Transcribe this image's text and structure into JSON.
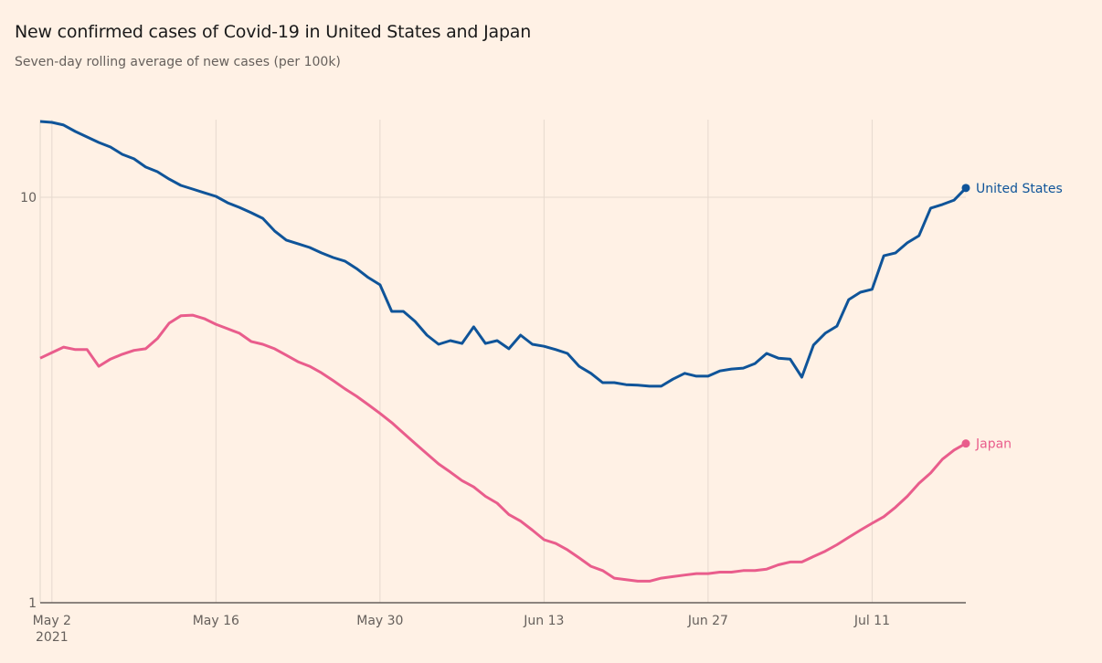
{
  "title": "New confirmed cases of Covid-19 in United States and Japan",
  "subtitle": "Seven-day rolling average of new cases (per 100k)",
  "chart_data": {
    "type": "line",
    "title": "New confirmed cases of Covid-19 in United States and Japan",
    "subtitle": "Seven-day rolling average of new cases (per 100k)",
    "xlabel": "",
    "ylabel": "",
    "yscale": "log",
    "ylim": [
      1,
      15.5
    ],
    "x_start": "2021-05-01",
    "x_end": "2021-07-19",
    "x_ticks": [
      {
        "day": 1,
        "label": "May 2",
        "sublabel": "2021"
      },
      {
        "day": 15,
        "label": "May 16"
      },
      {
        "day": 29,
        "label": "May 30"
      },
      {
        "day": 43,
        "label": "Jun 13"
      },
      {
        "day": 57,
        "label": "Jun 27"
      },
      {
        "day": 71,
        "label": "Jul 11"
      }
    ],
    "y_ticks": [
      {
        "value": 1,
        "label": "1"
      },
      {
        "value": 10,
        "label": "10"
      }
    ],
    "grid": true,
    "legend": "end-of-line labels",
    "series": [
      {
        "name": "United States",
        "color": "#0F5499",
        "values": [
          15.38,
          15.3,
          15.07,
          14.53,
          14.08,
          13.65,
          13.3,
          12.76,
          12.44,
          11.87,
          11.56,
          11.09,
          10.7,
          10.48,
          10.26,
          10.05,
          9.69,
          9.44,
          9.16,
          8.87,
          8.26,
          7.84,
          7.68,
          7.52,
          7.29,
          7.1,
          6.96,
          6.67,
          6.34,
          6.08,
          5.23,
          5.23,
          4.94,
          4.57,
          4.34,
          4.43,
          4.36,
          4.79,
          4.36,
          4.43,
          4.23,
          4.57,
          4.34,
          4.29,
          4.21,
          4.12,
          3.83,
          3.68,
          3.49,
          3.49,
          3.45,
          3.44,
          3.42,
          3.42,
          3.56,
          3.68,
          3.62,
          3.62,
          3.73,
          3.77,
          3.79,
          3.89,
          4.12,
          4.01,
          3.99,
          3.6,
          4.32,
          4.62,
          4.81,
          5.59,
          5.83,
          5.93,
          7.17,
          7.29,
          7.72,
          8.04,
          9.4,
          9.6,
          9.84,
          10.54
        ]
      },
      {
        "name": "Japan",
        "color": "#E95D8C",
        "values": [
          4.01,
          4.14,
          4.27,
          4.21,
          4.21,
          3.83,
          3.99,
          4.1,
          4.19,
          4.23,
          4.48,
          4.89,
          5.1,
          5.12,
          5.02,
          4.86,
          4.74,
          4.62,
          4.41,
          4.34,
          4.23,
          4.08,
          3.93,
          3.83,
          3.69,
          3.53,
          3.37,
          3.23,
          3.08,
          2.93,
          2.78,
          2.62,
          2.47,
          2.33,
          2.2,
          2.1,
          2.0,
          1.93,
          1.83,
          1.76,
          1.65,
          1.59,
          1.51,
          1.43,
          1.4,
          1.35,
          1.29,
          1.23,
          1.2,
          1.15,
          1.14,
          1.13,
          1.13,
          1.15,
          1.16,
          1.17,
          1.18,
          1.18,
          1.19,
          1.19,
          1.2,
          1.2,
          1.21,
          1.24,
          1.26,
          1.26,
          1.3,
          1.34,
          1.39,
          1.45,
          1.51,
          1.57,
          1.63,
          1.72,
          1.83,
          1.97,
          2.09,
          2.26,
          2.38,
          2.47
        ]
      }
    ]
  }
}
